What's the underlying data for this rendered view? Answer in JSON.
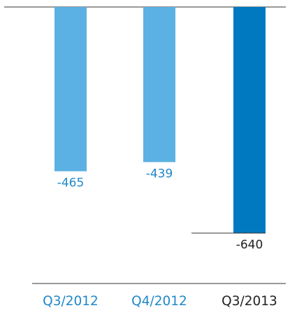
{
  "chart_data": {
    "type": "bar",
    "title": "",
    "xlabel": "",
    "ylabel": "",
    "categories": [
      "Q3/2012",
      "Q4/2012",
      "Q3/2013"
    ],
    "values": [
      -465,
      -439,
      -640
    ],
    "ylim": [
      -640,
      0
    ],
    "grid": false,
    "legend": "none",
    "data_labels": [
      "-465",
      "-439",
      "-640"
    ],
    "colors": {
      "bar_default": "#5BB1E3",
      "bar_highlight": "#0079C1",
      "label_default": "#1F88C8",
      "label_highlight": "#222222",
      "axis": "#333333"
    },
    "highlight_index": 2
  }
}
